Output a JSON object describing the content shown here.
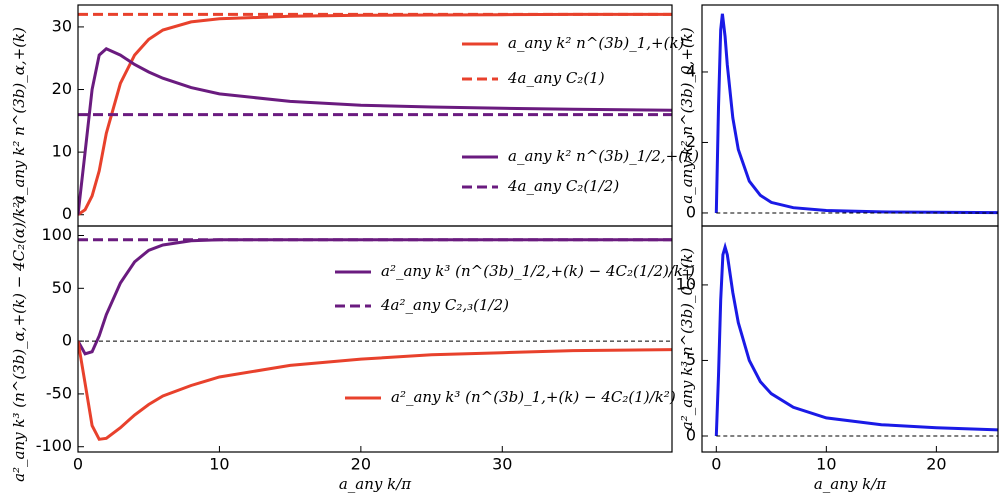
{
  "chart_data": [
    {
      "type": "line",
      "ylabel": "a_any k² n^(3b)_α,+(k)",
      "xlim": [
        0,
        42
      ],
      "ylim": [
        -1.8,
        33.5
      ],
      "yticks": [
        0,
        10,
        20,
        30
      ],
      "x": [
        0,
        0.5,
        1,
        1.5,
        2,
        3,
        4,
        5,
        6,
        8,
        10,
        15,
        20,
        25,
        30,
        35,
        42
      ],
      "series": [
        {
          "name": "a_any k² n^(3b)_1,+(k)",
          "color": "#e8412c",
          "dashed": false,
          "values": [
            0,
            0.8,
            3,
            7,
            13,
            21,
            25.5,
            28,
            29.5,
            30.8,
            31.3,
            31.7,
            31.85,
            31.9,
            31.95,
            32,
            32
          ]
        },
        {
          "name": "4a_any C₂(1)",
          "color": "#e8412c",
          "dashed": true,
          "x": [
            0,
            42
          ],
          "values": [
            32,
            32
          ]
        },
        {
          "name": "a_any k² n^(3b)_1/2,+(k)",
          "color": "#6a1b7f",
          "dashed": false,
          "values": [
            0,
            10,
            20,
            25.5,
            26.5,
            25.5,
            24,
            22.8,
            21.8,
            20.3,
            19.3,
            18.1,
            17.5,
            17.2,
            17,
            16.85,
            16.7
          ]
        },
        {
          "name": "4a_any C₂(1/2)",
          "color": "#6a1b7f",
          "dashed": true,
          "x": [
            0,
            42
          ],
          "values": [
            16,
            16
          ]
        }
      ]
    },
    {
      "type": "line",
      "ylabel": "a²_any k³ (n^(3b)_α,+(k) − 4C₂(α)/k²)",
      "xlabel": "a_any k/π",
      "xlim": [
        0,
        42
      ],
      "ylim": [
        -105,
        109
      ],
      "xticks": [
        0,
        10,
        20,
        30
      ],
      "yticks": [
        -100,
        -50,
        0,
        50,
        100
      ],
      "x": [
        0,
        0.5,
        1,
        1.5,
        2,
        3,
        4,
        5,
        6,
        8,
        10,
        15,
        20,
        25,
        30,
        35,
        42
      ],
      "series": [
        {
          "name": "a²_any k³ (n^(3b)_1/2,+(k) − 4C₂(1/2)/k²)",
          "color": "#6a1b7f",
          "dashed": false,
          "values": [
            0,
            -12,
            -10,
            5,
            25,
            55,
            75,
            86,
            91,
            95,
            96,
            96,
            96,
            96,
            96,
            96,
            96
          ]
        },
        {
          "name": "4a²_any C₂,₃(1/2)",
          "color": "#6a1b7f",
          "dashed": true,
          "x": [
            0,
            42
          ],
          "values": [
            96,
            96
          ]
        },
        {
          "color": "#000000",
          "dashed": true,
          "thin": true,
          "x": [
            0,
            42
          ],
          "values": [
            0,
            0
          ]
        },
        {
          "name": "a²_any k³ (n^(3b)_1,+(k) − 4C₂(1)/k²)",
          "color": "#e8412c",
          "dashed": false,
          "values": [
            0,
            -40,
            -80,
            -93,
            -92,
            -82,
            -70,
            -60,
            -52,
            -42,
            -34,
            -23,
            -17,
            -13,
            -11,
            -9,
            -8
          ]
        }
      ]
    },
    {
      "type": "line",
      "ylabel": "a_any k² n^(3b)_0,+(k)",
      "xlim": [
        -1.3,
        25.6
      ],
      "ylim": [
        -0.37,
        5.9
      ],
      "yticks": [
        0,
        2,
        4
      ],
      "x": [
        0,
        0.2,
        0.4,
        0.55,
        0.8,
        1,
        1.5,
        2,
        3,
        4,
        5,
        7,
        10,
        15,
        20,
        25.6
      ],
      "series": [
        {
          "color": "#1a1ae6",
          "dashed": false,
          "values": [
            0,
            3,
            5.2,
            5.65,
            5,
            4.2,
            2.7,
            1.8,
            0.9,
            0.5,
            0.3,
            0.15,
            0.07,
            0.03,
            0.02,
            0.01
          ]
        },
        {
          "color": "#000000",
          "dashed": true,
          "thin": true,
          "x": [
            0,
            25.6
          ],
          "values": [
            0,
            0
          ]
        }
      ]
    },
    {
      "type": "line",
      "ylabel": "a²_any k³ n^(3b)_0,+(k)",
      "xlabel": "a_any k/π",
      "xlim": [
        -1.3,
        25.6
      ],
      "ylim": [
        -1.06,
        13.9
      ],
      "xticks": [
        0,
        10,
        20
      ],
      "yticks": [
        0,
        5,
        10
      ],
      "x": [
        0,
        0.2,
        0.4,
        0.6,
        0.8,
        1,
        1.5,
        2,
        3,
        4,
        5,
        7,
        10,
        15,
        20,
        25.6
      ],
      "series": [
        {
          "color": "#1a1ae6",
          "dashed": false,
          "values": [
            0,
            4,
            9,
            12,
            12.5,
            12,
            9.5,
            7.5,
            5,
            3.6,
            2.8,
            1.9,
            1.2,
            0.75,
            0.55,
            0.4
          ]
        },
        {
          "color": "#000000",
          "dashed": true,
          "thin": true,
          "x": [
            0,
            25.6
          ],
          "values": [
            0,
            0
          ]
        }
      ]
    }
  ]
}
